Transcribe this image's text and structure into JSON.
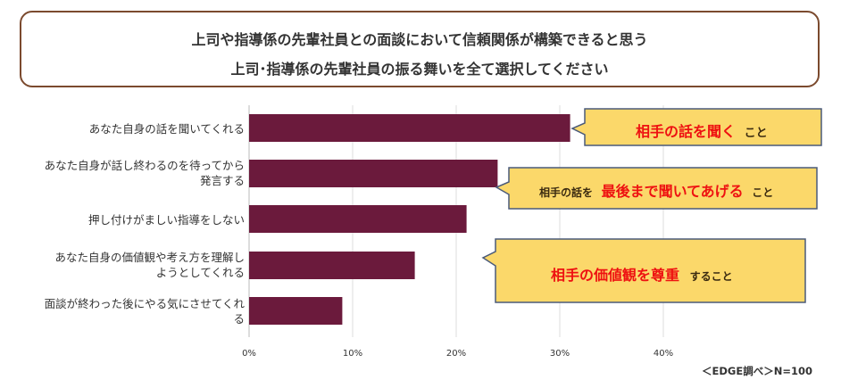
{
  "title": {
    "line1": "上司や指導係の先輩社員との面談において信頼関係が構築できると思う",
    "line2": "上司･指導係の先輩社員の振る舞いを全て選択してください"
  },
  "category_labels": [
    [
      "あなた自身の話を聞いてくれる"
    ],
    [
      "あなた自身が話し終わるのを待ってから",
      "発言する"
    ],
    [
      "押し付けがましい指導をしない"
    ],
    [
      "あなた自身の価値観や考え方を理解し",
      "ようとしてくれる"
    ],
    [
      "面談が終わった後にやる気にさせてくれ",
      "る"
    ]
  ],
  "callouts": [
    {
      "emph": "相手の話を聞く",
      "tail": "こと"
    },
    {
      "pre": "相手の話を",
      "emph": "最後まで聞いてあげる",
      "tail": "こと"
    },
    {
      "emph": "相手の価値観を尊重",
      "tail": "すること"
    }
  ],
  "source": "＜EDGE調べ＞N=100",
  "colors": {
    "bar": "#6b1a3c",
    "callout_fill": "#fbd86a",
    "callout_border": "#4a5a7a",
    "emphasis": "#ee1111",
    "frame": "#7b4a2e"
  },
  "chart_data": {
    "type": "bar",
    "orientation": "horizontal",
    "categories": [
      "あなた自身の話を聞いてくれる",
      "あなた自身が話し終わるのを待ってから発言する",
      "押し付けがましい指導をしない",
      "あなた自身の価値観や考え方を理解しようとしてくれる",
      "面談が終わった後にやる気にさせてくれる"
    ],
    "values": [
      31,
      24,
      21,
      16,
      9
    ],
    "xlim": [
      0,
      40
    ],
    "xticks": [
      "0%",
      "10%",
      "20%",
      "30%",
      "40%"
    ],
    "unit": "%",
    "grid": true
  }
}
